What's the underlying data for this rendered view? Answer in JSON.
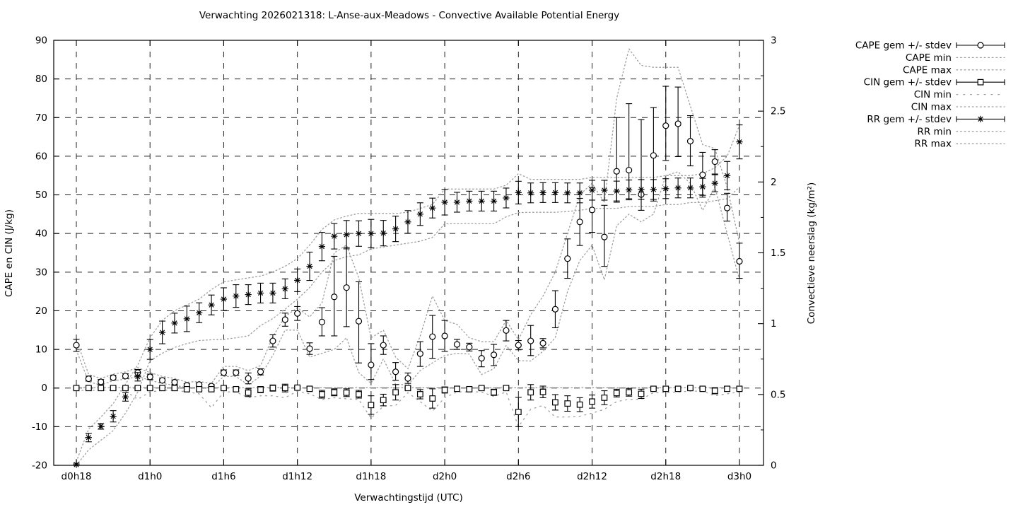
{
  "chart_data": {
    "type": "line",
    "title": "Verwachting 2026021318: L-Anse-aux-Meadows - Convective Available Potential Energy",
    "x": {
      "label": "Verwachtingstijd (UTC)",
      "n_points": 55,
      "tick_labels": [
        {
          "t": 0,
          "label": "d0h18"
        },
        {
          "t": 6,
          "label": "d1h0"
        },
        {
          "t": 12,
          "label": "d1h6"
        },
        {
          "t": 18,
          "label": "d1h12"
        },
        {
          "t": 24,
          "label": "d1h18"
        },
        {
          "t": 30,
          "label": "d2h0"
        },
        {
          "t": 36,
          "label": "d2h6"
        },
        {
          "t": 42,
          "label": "d2h12"
        },
        {
          "t": 48,
          "label": "d2h18"
        },
        {
          "t": 54,
          "label": "d3h0"
        }
      ]
    },
    "y1": {
      "label": "CAPE en CIN (J/kg)",
      "min": -20,
      "max": 90,
      "tick": 10,
      "tick_values": [
        -20,
        -10,
        0,
        10,
        20,
        30,
        40,
        50,
        60,
        70,
        80,
        90
      ]
    },
    "y2": {
      "label": "Convectieve neerslag (kg/m²)",
      "min": 0,
      "max": 3,
      "tick": 0.5,
      "tick_labels": [
        "0",
        "0.5",
        "1",
        "1.5",
        "2",
        "2.5",
        "3"
      ]
    },
    "series": {
      "cape": {
        "mean": [
          11.1,
          2.4,
          1.6,
          2.7,
          3.1,
          4.0,
          2.9,
          2.0,
          1.5,
          0.7,
          0.9,
          0.5,
          4.0,
          4.0,
          2.5,
          4.2,
          12.2,
          17.7,
          19.3,
          10.2,
          17.1,
          23.6,
          26.0,
          17.3,
          6.0,
          11.1,
          4.2,
          2.5,
          8.9,
          13.3,
          13.5,
          11.3,
          10.6,
          7.7,
          8.6,
          14.9,
          11.1,
          12.2,
          11.6,
          20.4,
          33.5,
          43.0,
          46.1,
          39.1,
          56.1,
          56.4,
          50.1,
          60.2,
          67.9,
          68.4,
          63.9,
          55.2,
          58.6,
          46.6,
          32.8
        ],
        "lo": [
          9.5,
          1.8,
          1.0,
          2.1,
          2.5,
          3.2,
          2.2,
          1.4,
          0.9,
          0.3,
          0.4,
          0.1,
          3.3,
          3.3,
          1.1,
          3.4,
          10.6,
          16.0,
          17.5,
          8.7,
          13.5,
          13.5,
          15.9,
          6.5,
          2.2,
          8.7,
          2.0,
          1.2,
          5.6,
          7.7,
          9.5,
          10.0,
          9.6,
          5.5,
          5.8,
          12.2,
          9.9,
          8.4,
          10.4,
          15.6,
          28.4,
          36.9,
          40.3,
          31.5,
          48.1,
          49.0,
          46.0,
          48.4,
          58.9,
          59.9,
          57.5,
          49.4,
          55.4,
          43.2,
          28.4
        ],
        "hi": [
          12.6,
          3.1,
          2.2,
          3.3,
          3.7,
          4.8,
          3.6,
          2.6,
          2.1,
          1.1,
          1.4,
          0.9,
          4.7,
          4.7,
          3.9,
          5.0,
          13.8,
          19.4,
          21.1,
          11.7,
          20.8,
          34.1,
          36.4,
          27.5,
          11.5,
          13.5,
          6.6,
          3.9,
          12.0,
          18.8,
          17.5,
          12.6,
          11.6,
          9.7,
          11.3,
          17.5,
          12.3,
          16.2,
          12.8,
          25.2,
          38.6,
          49.1,
          51.9,
          47.3,
          70.0,
          73.6,
          69.5,
          72.6,
          78.1,
          77.9,
          70.5,
          61.0,
          61.7,
          50.4,
          37.5
        ],
        "min": [
          9.8,
          1.6,
          0.8,
          1.9,
          2.3,
          3.0,
          2.0,
          1.2,
          0.7,
          0.1,
          0.2,
          0.0,
          3.0,
          3.0,
          0.8,
          3.1,
          8.5,
          15.0,
          15.0,
          8.0,
          9.0,
          10.0,
          13.0,
          4.0,
          1.2,
          7.5,
          1.0,
          0.8,
          4.5,
          6.5,
          8.4,
          9.0,
          8.8,
          3.5,
          5.0,
          11.0,
          7.1,
          7.0,
          9.5,
          13.0,
          25.0,
          33.0,
          37.0,
          28.0,
          42.0,
          45.0,
          43.0,
          45.0,
          55.0,
          56.0,
          53.0,
          46.0,
          52.0,
          40.0,
          28.0
        ],
        "max": [
          12.6,
          3.5,
          2.5,
          3.6,
          4.2,
          5.3,
          4.0,
          3.0,
          2.5,
          1.5,
          1.7,
          1.2,
          5.6,
          5.6,
          4.5,
          5.8,
          13.3,
          18.5,
          20.8,
          18.4,
          22.0,
          35.0,
          37.0,
          28.5,
          13.0,
          15.0,
          8.0,
          5.0,
          13.5,
          23.8,
          17.5,
          16.5,
          13.0,
          12.0,
          12.0,
          17.5,
          12.5,
          19.0,
          23.8,
          30.0,
          40.0,
          50.0,
          53.0,
          48.0,
          75.0,
          87.8,
          83.5,
          83.0,
          83.0,
          83.0,
          73.0,
          63.0,
          62.0,
          52.0,
          37.5
        ]
      },
      "cin": {
        "mean": [
          0,
          0,
          0,
          0,
          0,
          0,
          0,
          0,
          0,
          -0.3,
          -0.3,
          -0.3,
          0,
          -0.3,
          -1.2,
          -0.4,
          0,
          0,
          0.1,
          -0.2,
          -1.6,
          -1.1,
          -1.2,
          -1.6,
          -4.4,
          -3.1,
          -1.1,
          0,
          -1.6,
          -2.7,
          -0.5,
          -0.2,
          -0.3,
          0,
          -1.1,
          0,
          -6.2,
          -1.1,
          -1.0,
          -3.7,
          -4.0,
          -4.3,
          -3.5,
          -2.5,
          -1.3,
          -1.1,
          -1.5,
          -0.2,
          -0.2,
          -0.2,
          0,
          -0.2,
          -0.7,
          -0.2,
          -0.2
        ],
        "sd": [
          0.3,
          0.3,
          0.3,
          0.3,
          0.3,
          0.4,
          0.3,
          0.3,
          0.3,
          0.4,
          0.4,
          0.4,
          0.3,
          0.5,
          1.0,
          0.8,
          0.8,
          1.0,
          0.3,
          0.5,
          1.0,
          0.9,
          1.0,
          1.0,
          2.4,
          1.5,
          2.0,
          0.4,
          1.2,
          2.5,
          0.8,
          0.3,
          0.3,
          0.3,
          0.8,
          0.3,
          3.8,
          2.0,
          1.5,
          2.0,
          2.0,
          1.8,
          1.7,
          1.8,
          1.0,
          1.0,
          1.2,
          0.4,
          0.4,
          0.4,
          0.3,
          0.3,
          0.8,
          0.6,
          0.4
        ],
        "min": [
          -0.6,
          -0.6,
          -0.6,
          -0.6,
          -0.8,
          -2.9,
          -1.0,
          -0.6,
          -0.6,
          -1.0,
          -1.5,
          -5.1,
          -1.0,
          -1.0,
          -2.5,
          -2.0,
          -2.0,
          -2.5,
          -0.8,
          -1.5,
          -3.0,
          -2.5,
          -2.8,
          -3.0,
          -7.8,
          -4.7,
          -4.5,
          -1.2,
          -3.5,
          -6.0,
          -2.5,
          -1.0,
          -1.0,
          -1.0,
          -2.2,
          -1.0,
          -10.0,
          -5.5,
          -4.5,
          -7.5,
          -7.5,
          -7.3,
          -6.5,
          -5.5,
          -3.5,
          -2.9,
          -2.9,
          -1.2,
          -1.2,
          -1.0,
          -0.8,
          -0.8,
          -2.0,
          -1.5,
          -1.0
        ],
        "max_const": 0.1
      },
      "rr": {
        "mean": [
          0.005,
          0.196,
          0.275,
          0.346,
          0.483,
          0.625,
          0.818,
          0.938,
          1.004,
          1.034,
          1.077,
          1.132,
          1.173,
          1.195,
          1.205,
          1.216,
          1.216,
          1.246,
          1.306,
          1.405,
          1.544,
          1.617,
          1.628,
          1.636,
          1.636,
          1.639,
          1.669,
          1.718,
          1.773,
          1.816,
          1.857,
          1.857,
          1.865,
          1.865,
          1.865,
          1.887,
          1.925,
          1.923,
          1.925,
          1.925,
          1.923,
          1.923,
          1.942,
          1.942,
          1.936,
          1.944,
          1.947,
          1.947,
          1.953,
          1.958,
          1.958,
          1.966,
          1.991,
          2.045,
          2.283
        ],
        "sd": [
          0.01,
          0.03,
          0.02,
          0.04,
          0.03,
          0.03,
          0.07,
          0.08,
          0.07,
          0.09,
          0.07,
          0.07,
          0.08,
          0.08,
          0.07,
          0.07,
          0.07,
          0.07,
          0.08,
          0.1,
          0.1,
          0.09,
          0.1,
          0.09,
          0.1,
          0.09,
          0.09,
          0.08,
          0.08,
          0.07,
          0.09,
          0.07,
          0.07,
          0.07,
          0.07,
          0.07,
          0.08,
          0.07,
          0.07,
          0.07,
          0.07,
          0.07,
          0.07,
          0.07,
          0.07,
          0.07,
          0.07,
          0.07,
          0.07,
          0.07,
          0.07,
          0.06,
          0.06,
          0.1,
          0.12
        ],
        "min": [
          0.0,
          0.109,
          0.177,
          0.245,
          0.368,
          0.518,
          0.739,
          0.791,
          0.832,
          0.859,
          0.881,
          0.886,
          0.889,
          0.9,
          0.914,
          0.987,
          1.036,
          1.102,
          1.173,
          1.255,
          1.364,
          1.445,
          1.473,
          1.486,
          1.527,
          1.541,
          1.555,
          1.568,
          1.582,
          1.609,
          1.705,
          1.705,
          1.705,
          1.705,
          1.705,
          1.754,
          1.784,
          1.786,
          1.786,
          1.786,
          1.792,
          1.8,
          1.814,
          1.814,
          1.814,
          1.827,
          1.827,
          1.827,
          1.841,
          1.841,
          1.855,
          1.855,
          1.868,
          1.882,
          1.964
        ],
        "max": [
          0.027,
          0.256,
          0.341,
          0.436,
          0.573,
          0.709,
          0.9,
          1.023,
          1.091,
          1.132,
          1.173,
          1.241,
          1.295,
          1.309,
          1.323,
          1.336,
          1.364,
          1.405,
          1.459,
          1.555,
          1.664,
          1.732,
          1.759,
          1.778,
          1.778,
          1.778,
          1.778,
          1.786,
          1.814,
          1.841,
          1.95,
          1.95,
          1.95,
          1.95,
          1.95,
          1.977,
          2.059,
          2.018,
          2.018,
          2.018,
          2.018,
          2.018,
          2.032,
          2.032,
          2.032,
          2.032,
          2.032,
          2.032,
          2.045,
          2.045,
          2.045,
          2.059,
          2.1,
          2.182,
          2.4
        ]
      }
    },
    "legend": [
      {
        "label": "CAPE gem +/- stdev",
        "type": "errorbar",
        "marker": "circle"
      },
      {
        "label": "CAPE min",
        "type": "dotted"
      },
      {
        "label": "CAPE max",
        "type": "dotted"
      },
      {
        "label": "CIN gem +/- stdev",
        "type": "errorbar",
        "marker": "square"
      },
      {
        "label": "CIN min",
        "type": "dotted-sparse"
      },
      {
        "label": "CIN max",
        "type": "dotted"
      },
      {
        "label": "RR gem +/- stdev",
        "type": "errorbar",
        "marker": "star"
      },
      {
        "label": "RR min",
        "type": "dotted"
      },
      {
        "label": "RR max",
        "type": "dotted"
      }
    ],
    "colors": {
      "fg": "#000000",
      "minmax": "#9f9f9f",
      "grid": "#222222",
      "background": "#ffffff"
    },
    "layout": {
      "grid": true,
      "legend_position": "top-right-outside"
    }
  }
}
